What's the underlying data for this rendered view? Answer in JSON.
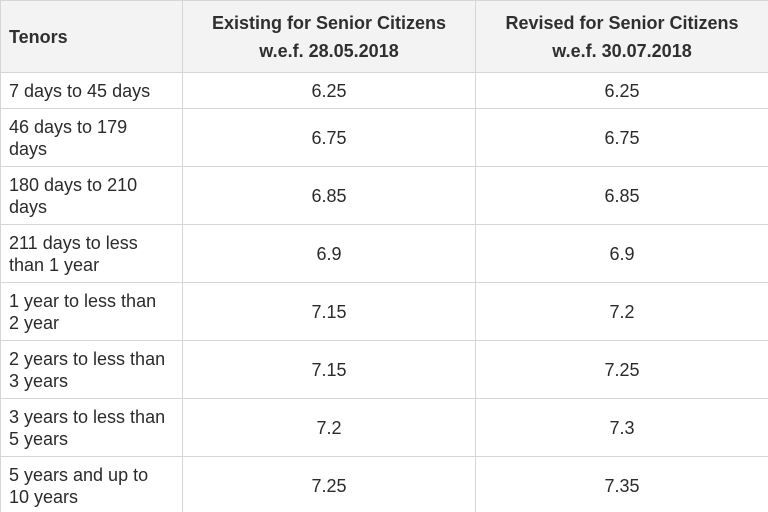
{
  "table": {
    "headers": {
      "tenor": "Tenors",
      "existing_line1": "Existing for Senior Citizens",
      "existing_line2": "w.e.f. 28.05.2018",
      "revised_line1": "Revised for Senior Citizens",
      "revised_line2": "w.e.f. 30.07.2018"
    },
    "rows": [
      {
        "tenor": "7 days to 45 days",
        "existing": "6.25",
        "revised": "6.25"
      },
      {
        "tenor": "46 days to 179 days",
        "existing": "6.75",
        "revised": "6.75"
      },
      {
        "tenor": "180 days to 210 days",
        "existing": "6.85",
        "revised": "6.85"
      },
      {
        "tenor": "211 days to less than 1 year",
        "existing": "6.9",
        "revised": "6.9"
      },
      {
        "tenor": "1 year to less than 2 year",
        "existing": "7.15",
        "revised": "7.2"
      },
      {
        "tenor": "2 years to less than 3 years",
        "existing": "7.15",
        "revised": "7.25"
      },
      {
        "tenor": "3 years to less than 5 years",
        "existing": "7.2",
        "revised": "7.3"
      },
      {
        "tenor": "5 years and up to 10 years",
        "existing": "7.25",
        "revised": "7.35"
      }
    ]
  }
}
